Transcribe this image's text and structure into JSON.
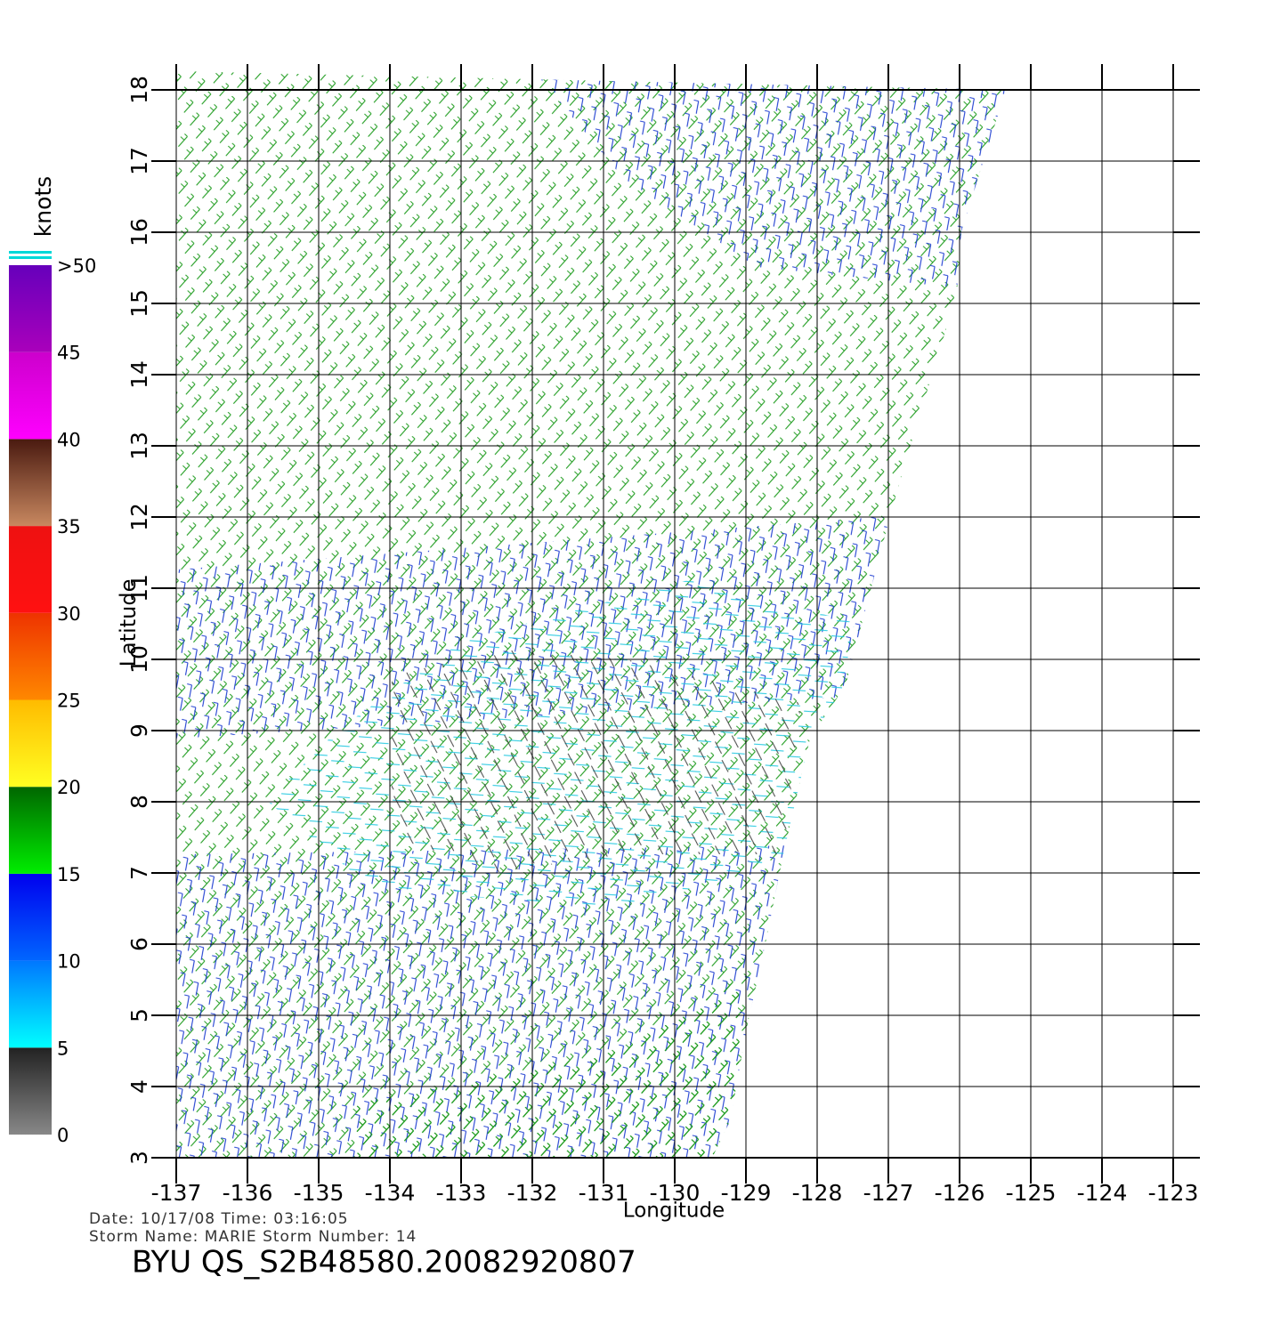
{
  "chart_data": {
    "type": "wind-barb-map",
    "xlabel": "Longitude",
    "ylabel": "Latitude",
    "xlim": [
      -137,
      -123
    ],
    "ylim": [
      3,
      18
    ],
    "xticks": [
      -137,
      -136,
      -135,
      -134,
      -133,
      -132,
      -131,
      -130,
      -129,
      -128,
      -127,
      -126,
      -125,
      -124,
      -123
    ],
    "yticks": [
      3,
      4,
      5,
      6,
      7,
      8,
      9,
      10,
      11,
      12,
      13,
      14,
      15,
      16,
      17,
      18
    ],
    "grid": true,
    "colorbar": {
      "label": "knots",
      "ticks": [
        0,
        5,
        10,
        15,
        20,
        25,
        30,
        35,
        40,
        45,
        {
          "value": 50,
          "label": ">50"
        }
      ],
      "colors": [
        [
          "#888888",
          "#222222"
        ],
        [
          "#00ffff",
          "#0077ff"
        ],
        [
          "#0066ff",
          "#0000ee"
        ],
        [
          "#00ee00",
          "#006600"
        ],
        [
          "#ffff22",
          "#ffbb00"
        ],
        [
          "#ff8800",
          "#ee3300"
        ],
        [
          "#ff1111",
          "#ee1111"
        ],
        [
          "#c88860",
          "#4a1a10"
        ],
        [
          "#ff00ff",
          "#cc00cc"
        ],
        [
          "#aa00bb",
          "#6600bb"
        ]
      ]
    },
    "footer": {
      "date_time": "Date: 10/17/08   Time: 03:16:05",
      "storm": "Storm  Name: MARIE    Storm  Number: 14",
      "file": "BYU  QS_S2B48580.20082920807"
    }
  }
}
